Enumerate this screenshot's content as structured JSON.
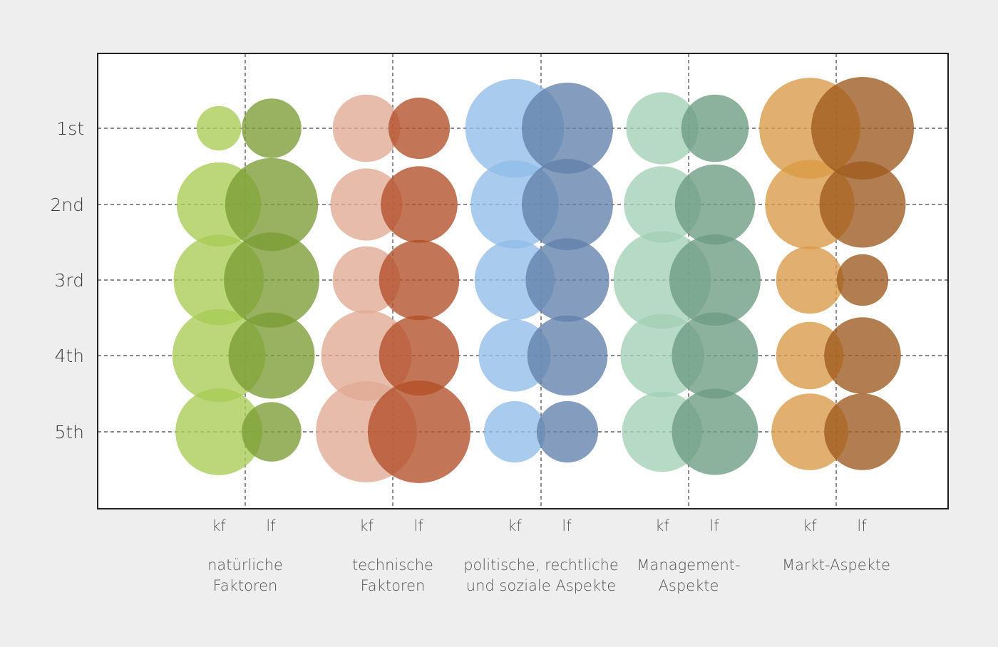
{
  "chart_data": {
    "type": "scatter",
    "subtype": "bubble",
    "title": "",
    "xlabel": "",
    "ylabel": "",
    "ranks": [
      "1st",
      "2nd",
      "3rd",
      "4th",
      "5th"
    ],
    "sub_categories": [
      "kf",
      "lf"
    ],
    "groups": [
      {
        "label_lines": [
          "natürliche",
          "Faktoren"
        ],
        "colors": {
          "kf": "#a8cc55",
          "lf": "#7b9c35"
        },
        "sizes": {
          "kf": [
            18,
            64,
            74,
            78,
            68
          ],
          "lf": [
            32,
            78,
            82,
            67,
            32
          ]
        }
      },
      {
        "label_lines": [
          "technische",
          "Faktoren"
        ],
        "colors": {
          "kf": "#e0a994",
          "lf": "#b24e28"
        },
        "sizes": {
          "kf": [
            41,
            47,
            41,
            74,
            92
          ],
          "lf": [
            34,
            53,
            58,
            58,
            95
          ]
        }
      },
      {
        "label_lines": [
          "politische, rechtliche",
          "und soziale Aspekte"
        ],
        "colors": {
          "kf": "#90bde9",
          "lf": "#6280ab"
        },
        "sizes": {
          "kf": [
            88,
            70,
            58,
            47,
            34
          ],
          "lf": [
            75,
            75,
            63,
            58,
            34
          ]
        }
      },
      {
        "label_lines": [
          "Management-",
          "Aspekte"
        ],
        "colors": {
          "kf": "#a3cfb5",
          "lf": "#6b9b81"
        },
        "sizes": {
          "kf": [
            47,
            53,
            86,
            63,
            58
          ],
          "lf": [
            41,
            58,
            75,
            67,
            67
          ]
        }
      },
      {
        "label_lines": [
          "Markt-Aspekte"
        ],
        "colors": {
          "kf": "#da9a45",
          "lf": "#9e5a1d"
        },
        "sizes": {
          "kf": [
            92,
            72,
            41,
            41,
            53
          ],
          "lf": [
            95,
            67,
            24,
            53,
            53
          ]
        }
      }
    ],
    "grid": true,
    "legend": "none"
  }
}
